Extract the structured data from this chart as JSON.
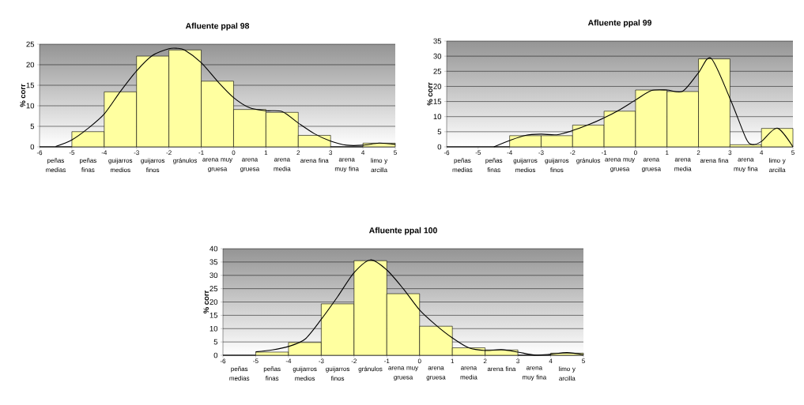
{
  "chart_data": [
    {
      "type": "histogram",
      "title": "Afluente ppal 98",
      "ylabel": "% corr",
      "color": "#ffffa0",
      "bins": [
        -6,
        -5,
        -4,
        -3,
        -2,
        -1,
        0,
        1,
        2,
        3,
        4,
        5
      ],
      "values": [
        0,
        3.7,
        13.4,
        22.1,
        23.6,
        16,
        9.1,
        8.4,
        2.8,
        0,
        0.9
      ],
      "categories": [
        "peñas medias",
        "peñas finas",
        "guijarros medios",
        "guijarros finos",
        "gránulos",
        "arena muy gruesa",
        "arena gruesa",
        "arena media",
        "arena fina",
        "arena muy fina",
        "limo y arcilla"
      ],
      "xlim": [
        -6,
        5
      ],
      "xticks": [
        -6,
        -5,
        -4,
        -3,
        -2,
        -1,
        0,
        1,
        2,
        3,
        4,
        5
      ],
      "ylim": [
        0,
        25
      ],
      "yticks": [
        0,
        5,
        10,
        15,
        20,
        25
      ],
      "grid": "y",
      "series": [
        {
          "type": "line",
          "color": "#000000",
          "x": [
            -5.5,
            -5,
            -4.5,
            -4,
            -3.5,
            -3,
            -2.5,
            -2,
            -1.75,
            -1.5,
            -1,
            -0.5,
            0,
            0.5,
            1,
            1.5,
            2,
            2.5,
            3,
            3.5,
            4,
            4.5,
            5
          ],
          "values": [
            0.1,
            1.7,
            4.5,
            8,
            13.5,
            18.5,
            22.3,
            23.9,
            24,
            23.5,
            20.5,
            16,
            12,
            9.5,
            8.8,
            8.6,
            5.8,
            3.2,
            1.4,
            0.4,
            0.4,
            0.9,
            0.6
          ]
        }
      ]
    },
    {
      "type": "histogram",
      "title": "Afluente ppal 99",
      "ylabel": "% corr",
      "color": "#ffffa0",
      "bins": [
        -6,
        -5,
        -4,
        -3,
        -2,
        -1,
        0,
        1,
        2,
        3,
        4,
        5
      ],
      "values": [
        0,
        0,
        3.7,
        3.7,
        7.2,
        11.8,
        18.8,
        18.3,
        29.1,
        0.7,
        6.1
      ],
      "categories": [
        "peñas medias",
        "peñas finas",
        "guijarros medios",
        "guijarros finos",
        "gránulos",
        "arena muy gruesa",
        "arena gruesa",
        "arena media",
        "arena fina",
        "arena muy fina",
        "limo y arcilla"
      ],
      "xlim": [
        -6,
        5
      ],
      "xticks": [
        -6,
        -5,
        -4,
        -3,
        -2,
        -1,
        0,
        1,
        2,
        3,
        4,
        5
      ],
      "ylim": [
        0,
        35
      ],
      "yticks": [
        0,
        5,
        10,
        15,
        20,
        25,
        30,
        35
      ],
      "grid": "y",
      "series": [
        {
          "type": "line",
          "color": "#000000",
          "x": [
            -4.5,
            -4,
            -3.5,
            -3,
            -2.5,
            -2,
            -1.5,
            -1,
            -0.5,
            0,
            0.5,
            1,
            1.5,
            2,
            2.4,
            3,
            3.5,
            3.7,
            4,
            4.5,
            5
          ],
          "values": [
            0,
            2.1,
            3.8,
            4.2,
            4,
            5.4,
            7.3,
            9.6,
            12.3,
            15.5,
            18.6,
            18.8,
            18.4,
            24.5,
            29.3,
            16,
            3,
            0.8,
            1.8,
            6.2,
            0
          ]
        }
      ]
    },
    {
      "type": "histogram",
      "title": "Afluente ppal 100",
      "ylabel": "% corr",
      "color": "#ffffa0",
      "bins": [
        -6,
        -5,
        -4,
        -3,
        -2,
        -1,
        0,
        1,
        2,
        3,
        4,
        5
      ],
      "values": [
        0,
        1.2,
        4.8,
        19.3,
        35.5,
        23.1,
        10.9,
        2.8,
        2,
        0,
        0.8
      ],
      "categories": [
        "peñas medias",
        "peñas finas",
        "guijarros medios",
        "guijarros finos",
        "gránulos",
        "arena muy gruesa",
        "arena gruesa",
        "arena media",
        "arena fina",
        "arena muy fina",
        "limo y arcilla"
      ],
      "xlim": [
        -6,
        5
      ],
      "xticks": [
        -6,
        -5,
        -4,
        -3,
        -2,
        -1,
        0,
        1,
        2,
        3,
        4,
        5
      ],
      "ylim": [
        0,
        40
      ],
      "yticks": [
        0,
        5,
        10,
        15,
        20,
        25,
        30,
        35,
        40
      ],
      "grid": "y",
      "series": [
        {
          "type": "line",
          "color": "#000000",
          "x": [
            -5,
            -4.5,
            -4,
            -3.5,
            -3,
            -2.5,
            -2,
            -1.5,
            -1,
            -0.5,
            0,
            0.5,
            1,
            1.5,
            2,
            2.5,
            3,
            3.5,
            4,
            4.5,
            5
          ],
          "values": [
            1.3,
            2,
            3.3,
            6,
            13.5,
            22,
            31,
            35.8,
            32,
            25,
            17,
            11.3,
            6.5,
            2.8,
            1.8,
            2.1,
            1.2,
            0.1,
            0.4,
            1,
            0.2
          ]
        }
      ]
    }
  ]
}
